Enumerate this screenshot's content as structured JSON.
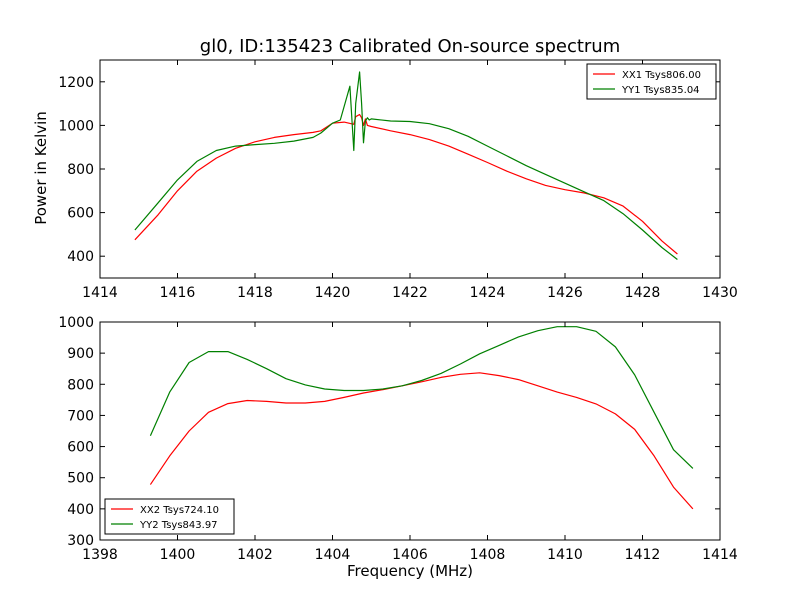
{
  "chart_data": [
    {
      "type": "line",
      "title": "gl0, ID:135423 Calibrated On-source spectrum",
      "xlabel": "",
      "ylabel": "Power in Kelvin",
      "xlim": [
        1414,
        1430
      ],
      "ylim": [
        300,
        1300
      ],
      "xticks": [
        1414,
        1416,
        1418,
        1420,
        1422,
        1424,
        1426,
        1428,
        1430
      ],
      "yticks": [
        400,
        600,
        800,
        1000,
        1200
      ],
      "legend_position": "top-right",
      "series": [
        {
          "name": "XX1 Tsys806.00",
          "color": "#ff0000",
          "x": [
            1414.9,
            1415.5,
            1416.0,
            1416.5,
            1417.0,
            1417.5,
            1418.0,
            1418.5,
            1419.0,
            1419.5,
            1419.7,
            1420.0,
            1420.3,
            1420.55,
            1420.6,
            1420.7,
            1420.75,
            1420.8,
            1420.85,
            1420.9,
            1421.0,
            1421.5,
            1422.0,
            1422.5,
            1423.0,
            1423.5,
            1424.0,
            1424.5,
            1425.0,
            1425.5,
            1426.0,
            1426.5,
            1427.0,
            1427.5,
            1428.0,
            1428.5,
            1428.9
          ],
          "values": [
            475,
            590,
            700,
            790,
            850,
            895,
            925,
            945,
            958,
            968,
            975,
            1010,
            1015,
            1005,
            1040,
            1050,
            1035,
            1000,
            1030,
            1000,
            995,
            975,
            958,
            935,
            905,
            868,
            830,
            790,
            755,
            725,
            705,
            690,
            668,
            630,
            560,
            470,
            410
          ]
        },
        {
          "name": "YY1 Tsys835.04",
          "color": "#008000",
          "x": [
            1414.9,
            1415.5,
            1416.0,
            1416.5,
            1417.0,
            1417.5,
            1418.0,
            1418.5,
            1419.0,
            1419.5,
            1419.7,
            1420.0,
            1420.2,
            1420.45,
            1420.55,
            1420.6,
            1420.7,
            1420.75,
            1420.8,
            1420.85,
            1420.9,
            1420.95,
            1421.0,
            1421.5,
            1422.0,
            1422.5,
            1423.0,
            1423.5,
            1424.0,
            1424.5,
            1425.0,
            1425.5,
            1426.0,
            1426.5,
            1427.0,
            1427.5,
            1428.0,
            1428.5,
            1428.9
          ],
          "values": [
            520,
            645,
            750,
            835,
            885,
            905,
            912,
            918,
            928,
            945,
            965,
            1010,
            1025,
            1180,
            885,
            1100,
            1245,
            1100,
            920,
            1020,
            1035,
            1025,
            1030,
            1020,
            1018,
            1008,
            985,
            950,
            905,
            860,
            815,
            775,
            735,
            695,
            655,
            595,
            520,
            440,
            385
          ]
        }
      ]
    },
    {
      "type": "line",
      "title": "",
      "xlabel": "Frequency (MHz)",
      "ylabel": "",
      "xlim": [
        1398,
        1414
      ],
      "ylim": [
        300,
        1000
      ],
      "xticks": [
        1398,
        1400,
        1402,
        1404,
        1406,
        1408,
        1410,
        1412,
        1414
      ],
      "yticks": [
        300,
        400,
        500,
        600,
        700,
        800,
        900,
        1000
      ],
      "legend_position": "bottom-left",
      "series": [
        {
          "name": "XX2 Tsys724.10",
          "color": "#ff0000",
          "x": [
            1399.3,
            1399.8,
            1400.3,
            1400.8,
            1401.3,
            1401.8,
            1402.3,
            1402.8,
            1403.3,
            1403.8,
            1404.3,
            1404.8,
            1405.3,
            1405.8,
            1406.3,
            1406.8,
            1407.3,
            1407.8,
            1408.3,
            1408.8,
            1409.3,
            1409.8,
            1410.3,
            1410.8,
            1411.3,
            1411.8,
            1412.3,
            1412.8,
            1413.3
          ],
          "values": [
            478,
            570,
            650,
            710,
            738,
            748,
            745,
            740,
            740,
            745,
            758,
            772,
            783,
            795,
            808,
            822,
            832,
            837,
            828,
            815,
            795,
            775,
            758,
            737,
            705,
            655,
            570,
            470,
            400
          ]
        },
        {
          "name": "YY2 Tsys843.97",
          "color": "#008000",
          "x": [
            1399.3,
            1399.8,
            1400.3,
            1400.8,
            1401.3,
            1401.8,
            1402.3,
            1402.8,
            1403.3,
            1403.8,
            1404.3,
            1404.8,
            1405.3,
            1405.8,
            1406.3,
            1406.8,
            1407.3,
            1407.8,
            1408.3,
            1408.8,
            1409.3,
            1409.8,
            1410.3,
            1410.8,
            1411.3,
            1411.8,
            1412.3,
            1412.8,
            1413.3
          ],
          "values": [
            635,
            775,
            870,
            905,
            905,
            880,
            850,
            818,
            798,
            785,
            780,
            780,
            785,
            795,
            812,
            835,
            865,
            898,
            925,
            952,
            972,
            985,
            985,
            970,
            920,
            830,
            710,
            590,
            530
          ]
        }
      ]
    }
  ]
}
